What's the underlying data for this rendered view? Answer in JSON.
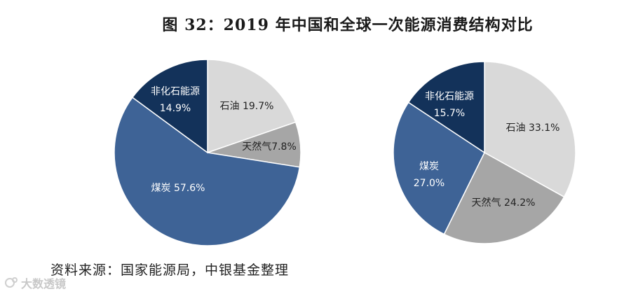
{
  "title": "图 32：2019 年中国和全球一次能源消费结构对比",
  "source": "资料来源：国家能源局，中银基金整理",
  "watermark": "大数透镜",
  "chart_data": [
    {
      "type": "pie",
      "slices": [
        {
          "label": "石油",
          "value": 19.7,
          "display": "19.7%",
          "color": "#d9d9d9"
        },
        {
          "label": "天然气",
          "value": 7.8,
          "display": "7.8%",
          "color": "#a6a6a6"
        },
        {
          "label": "煤炭",
          "value": 57.6,
          "display": "57.6%",
          "color": "#3e6396"
        },
        {
          "label": "非化石能源",
          "value": 14.9,
          "display": "14.9%",
          "color": "#13325a"
        }
      ]
    },
    {
      "type": "pie",
      "slices": [
        {
          "label": "石油",
          "value": 33.1,
          "display": "33.1%",
          "color": "#d9d9d9"
        },
        {
          "label": "天然气",
          "value": 24.2,
          "display": "24.2%",
          "color": "#a6a6a6"
        },
        {
          "label": "煤炭",
          "value": 27.0,
          "display": "27.0%",
          "color": "#3e6396"
        },
        {
          "label": "非化石能源",
          "value": 15.7,
          "display": "15.7%",
          "color": "#13325a"
        }
      ]
    }
  ]
}
